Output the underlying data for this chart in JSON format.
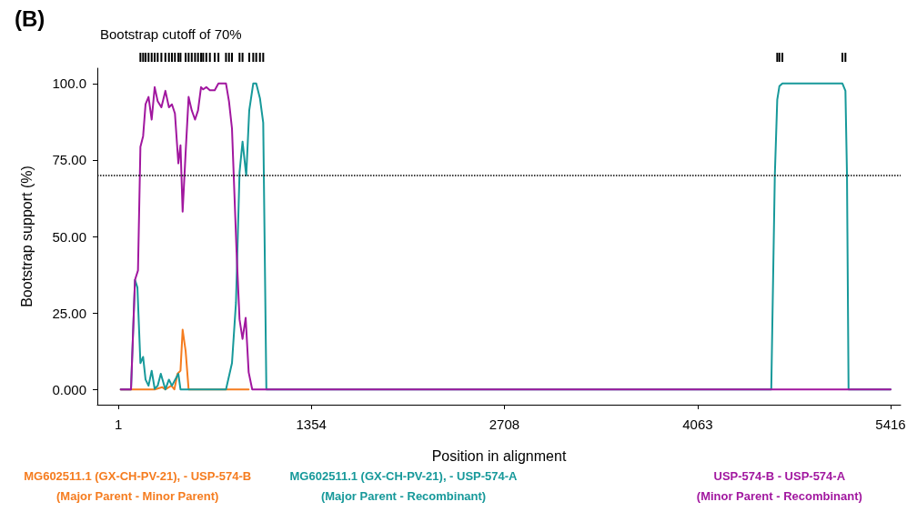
{
  "chart_data": {
    "type": "line",
    "title": "(B)",
    "xlabel": "Position in alignment",
    "ylabel": "Bootstrap support (%)",
    "xlim": [
      -146,
      5486
    ],
    "xticks": [
      1,
      1354,
      2708,
      4063,
      5416
    ],
    "ylim": [
      -5,
      105
    ],
    "yticks": [
      {
        "value": 0,
        "label": "0.000"
      },
      {
        "value": 25,
        "label": "25.00"
      },
      {
        "value": 50,
        "label": "50.00"
      },
      {
        "value": 75,
        "label": "75.00"
      },
      {
        "value": 100,
        "label": "100.0"
      }
    ],
    "grid": false,
    "legend": "bottom",
    "marker": "none",
    "line_style": "solid",
    "ref_lines": [
      {
        "axis": "y",
        "value": 70,
        "label": "Bootstrap cutoff of 70%",
        "color": "#000000",
        "line_style": "dotted"
      }
    ],
    "series": [
      {
        "name": "MG602511.1 (GX-CH-PV-21), - USP-574-B\n(Major Parent - Minor Parent)",
        "color": "#f57c1f",
        "x": [
          18,
          256,
          309,
          331,
          373,
          394,
          416,
          437,
          452,
          473,
          494,
          915
        ],
        "values": [
          0,
          0,
          0.7,
          0,
          1.2,
          0,
          5.1,
          6.1,
          19.5,
          12.6,
          0,
          0
        ]
      },
      {
        "name": "MG602511.1 (GX-CH-PV-21), - USP-574-A\n(Major Parent - Recombinant)",
        "color": "#17999a",
        "x": [
          18,
          90,
          118,
          135,
          156,
          175,
          192,
          213,
          235,
          256,
          277,
          299,
          331,
          356,
          377,
          422,
          437,
          756,
          798,
          826,
          851,
          872,
          898,
          919,
          947,
          968,
          994,
          1017,
          1039,
          4579,
          4604,
          4621,
          4636,
          4657,
          5078,
          5099,
          5110,
          5121,
          5416
        ],
        "values": [
          0,
          0,
          35.8,
          33.3,
          8.6,
          10.6,
          3.2,
          1.2,
          6.1,
          0.2,
          1.2,
          5.1,
          0,
          3.2,
          1.2,
          5.1,
          0,
          0,
          8.6,
          28.4,
          70.9,
          81,
          69.9,
          91.2,
          100,
          100,
          95.2,
          87.2,
          0,
          0,
          69.9,
          94.7,
          99.1,
          100,
          100,
          97.6,
          69.9,
          0,
          0
        ]
      },
      {
        "name": "USP-574-B - USP-574-A\n(Minor Parent - Recombinant)",
        "color": "#a1179f",
        "x": [
          18,
          90,
          118,
          139,
          156,
          175,
          192,
          213,
          235,
          256,
          277,
          303,
          331,
          356,
          377,
          398,
          422,
          437,
          452,
          473,
          494,
          516,
          539,
          560,
          581,
          596,
          618,
          643,
          677,
          703,
          756,
          777,
          798,
          830,
          851,
          872,
          894,
          915,
          940,
          5416
        ],
        "values": [
          0,
          0,
          35.8,
          38.9,
          79.3,
          82.8,
          93.2,
          95.6,
          88.2,
          98.8,
          94.2,
          92.2,
          97.6,
          92.2,
          93.2,
          90.2,
          73.9,
          79.8,
          58.1,
          77.4,
          95.6,
          91.2,
          88.2,
          91.2,
          98.8,
          98.1,
          98.8,
          97.8,
          97.8,
          100,
          100,
          94.2,
          85.3,
          45.2,
          22.9,
          16.5,
          23.4,
          5.6,
          0,
          0
        ]
      }
    ]
  }
}
